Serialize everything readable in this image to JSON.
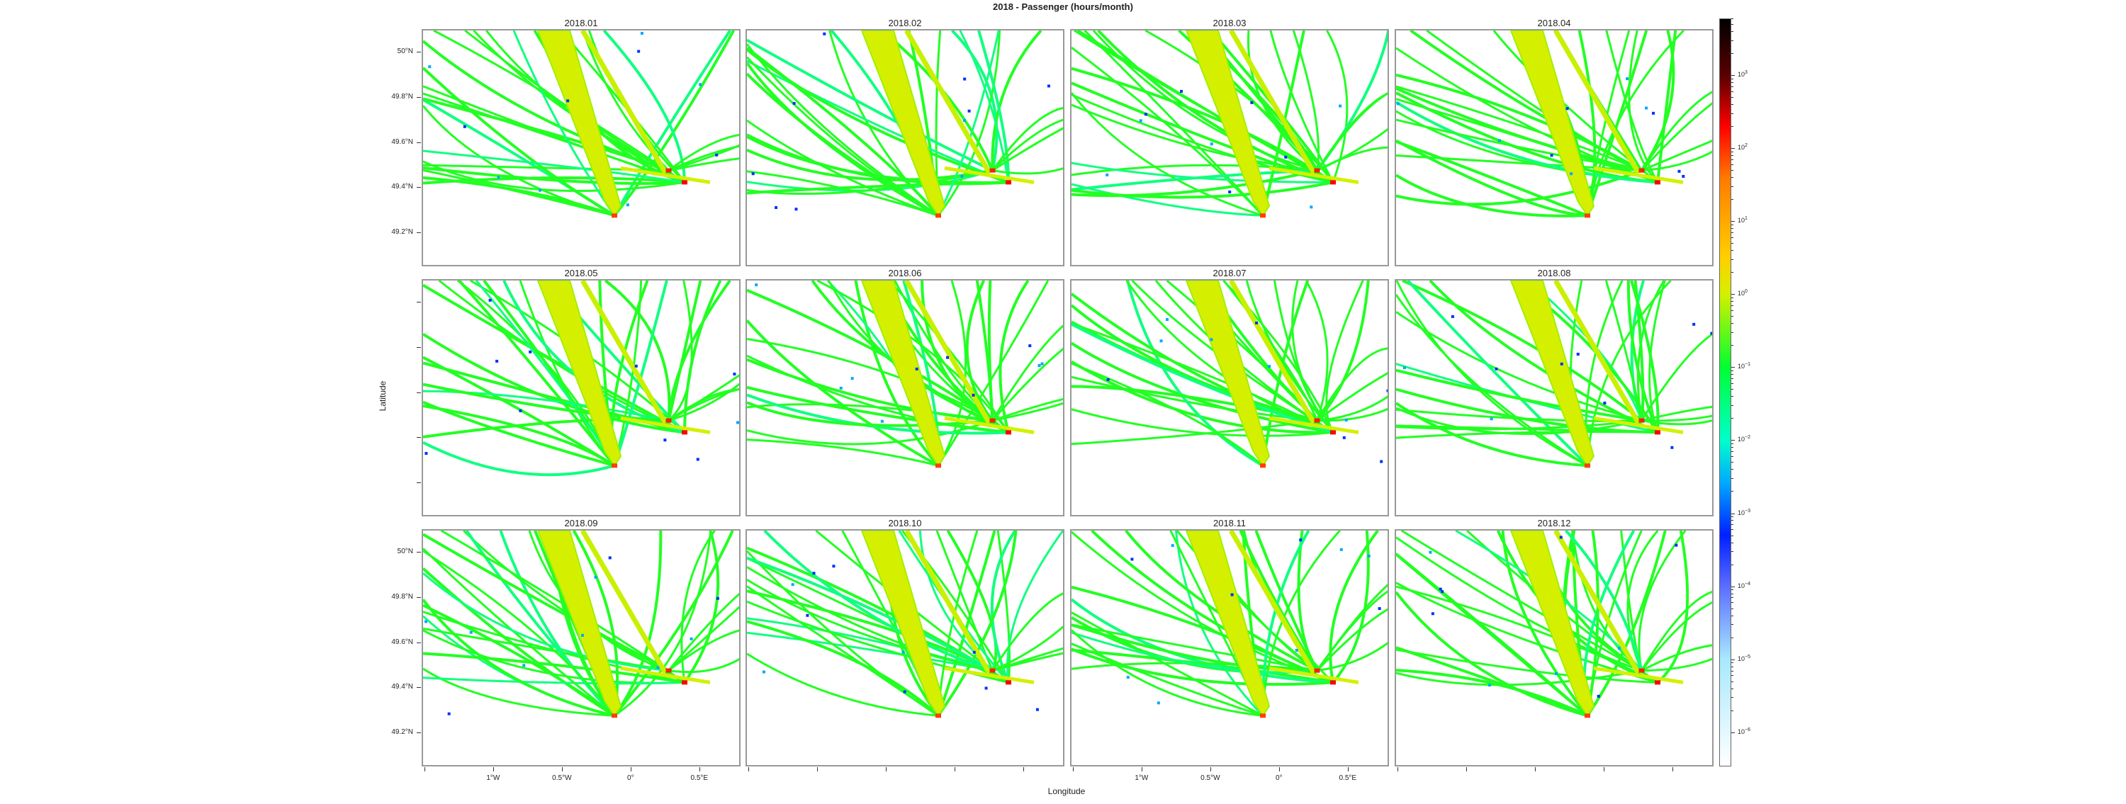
{
  "title": "2018 - Passenger (hours/month)",
  "panels": [
    "2018.01",
    "2018.02",
    "2018.03",
    "2018.04",
    "2018.05",
    "2018.06",
    "2018.07",
    "2018.08",
    "2018.09",
    "2018.10",
    "2018.11",
    "2018.12"
  ],
  "axes": {
    "xlabel": "Longitude",
    "ylabel": "Latitude",
    "yticks": [
      "50°N",
      "49.8°N",
      "49.6°N",
      "49.4°N",
      "49.2°N"
    ],
    "xticks": [
      "1°W",
      "0.5°W",
      "0°",
      "0.5°E"
    ]
  },
  "colorbar": {
    "ticks": [
      {
        "base": "10",
        "exp": "3"
      },
      {
        "base": "10",
        "exp": "2"
      },
      {
        "base": "10",
        "exp": "1"
      },
      {
        "base": "10",
        "exp": "0"
      },
      {
        "base": "10",
        "exp": "−1"
      },
      {
        "base": "10",
        "exp": "−2"
      },
      {
        "base": "10",
        "exp": "−3"
      },
      {
        "base": "10",
        "exp": "−4"
      },
      {
        "base": "10",
        "exp": "−5"
      },
      {
        "base": "10",
        "exp": "−6"
      }
    ],
    "scale": "log",
    "colors": [
      "#000000",
      "#5a0000",
      "#ff0000",
      "#ff7a00",
      "#ffd000",
      "#d4f000",
      "#00ff30",
      "#00ffcc",
      "#00a8ff",
      "#0020ff",
      "#5a6cff",
      "#a8e8ff",
      "#ffffff"
    ]
  },
  "chart_data": {
    "type": "heatmap",
    "title": "2018 - Passenger (hours/month)",
    "xlabel": "Longitude",
    "ylabel": "Latitude",
    "xlim": [
      -1.52,
      0.8
    ],
    "ylim": [
      49.05,
      50.1
    ],
    "color_range_log10": [
      -6.5,
      3.8
    ],
    "panels": [
      "2018.01",
      "2018.02",
      "2018.03",
      "2018.04",
      "2018.05",
      "2018.06",
      "2018.07",
      "2018.08",
      "2018.09",
      "2018.10",
      "2018.11",
      "2018.12"
    ],
    "layout": "3 rows x 4 columns",
    "legend": "right colorbar"
  }
}
